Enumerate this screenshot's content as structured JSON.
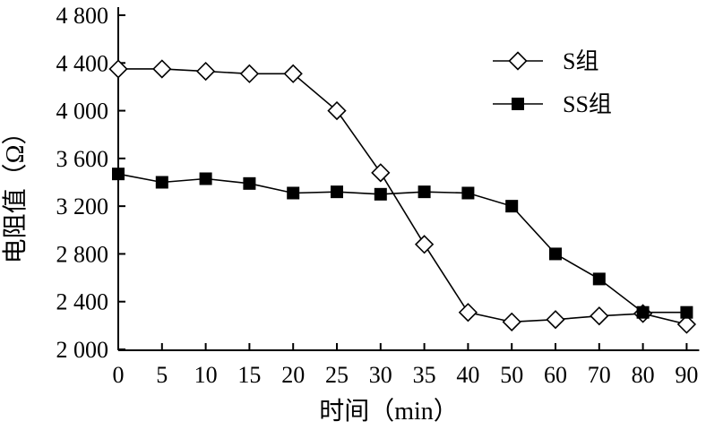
{
  "chart_data": {
    "type": "line",
    "title": "",
    "xlabel": "时间（min）",
    "ylabel": "电阻值（Ω）",
    "categories": [
      "0",
      "5",
      "10",
      "15",
      "20",
      "25",
      "30",
      "35",
      "40",
      "50",
      "60",
      "70",
      "80",
      "90"
    ],
    "y_ticks": [
      "2 000",
      "2 400",
      "2 800",
      "3 200",
      "3 600",
      "4 000",
      "4 400",
      "4 800"
    ],
    "y_tick_values": [
      2000,
      2400,
      2800,
      3200,
      3600,
      4000,
      4400,
      4800
    ],
    "ylim": [
      2000,
      4800
    ],
    "grid": false,
    "legend_position": "top-right",
    "series": [
      {
        "name": "S组",
        "marker": "open-diamond",
        "color": "#000000",
        "values": [
          4350,
          4350,
          4330,
          4310,
          4310,
          4000,
          3480,
          2880,
          2310,
          2230,
          2250,
          2280,
          2300,
          2210
        ]
      },
      {
        "name": "SS组",
        "marker": "filled-square",
        "color": "#000000",
        "values": [
          3470,
          3400,
          3430,
          3390,
          3310,
          3320,
          3300,
          3320,
          3310,
          3200,
          2800,
          2590,
          2310,
          2310
        ]
      }
    ]
  }
}
